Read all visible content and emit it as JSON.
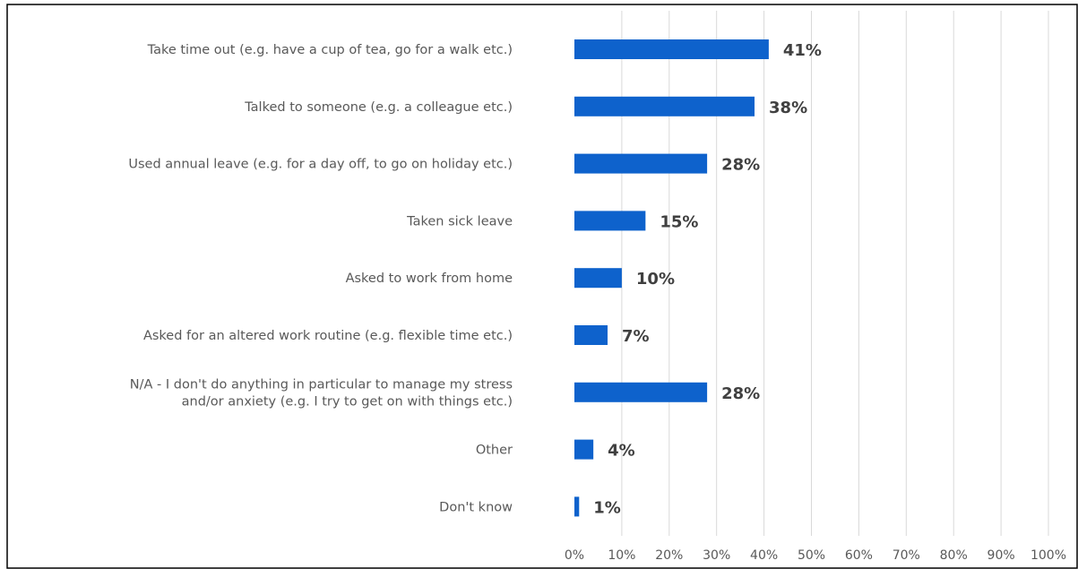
{
  "chart_data": {
    "type": "bar",
    "orientation": "horizontal",
    "categories": [
      [
        "Take time out (e.g. have a cup of tea, go for a walk etc.)"
      ],
      [
        "Talked to someone (e.g. a colleague etc.)"
      ],
      [
        "Used annual leave (e.g. for a day off, to go on holiday etc.)"
      ],
      [
        "Taken sick leave"
      ],
      [
        "Asked to work from home"
      ],
      [
        "Asked for an altered work routine (e.g. flexible time etc.)"
      ],
      [
        "N/A - I don't do anything in particular to manage my stress",
        "and/or anxiety (e.g. I try to get on with things etc.)"
      ],
      [
        "Other"
      ],
      [
        "Don't know"
      ]
    ],
    "values": [
      41,
      38,
      28,
      15,
      10,
      7,
      28,
      4,
      1
    ],
    "data_labels": [
      "41%",
      "38%",
      "28%",
      "15%",
      "10%",
      "7%",
      "28%",
      "4%",
      "1%"
    ],
    "xlim": [
      0,
      100
    ],
    "ticks": [
      0,
      10,
      20,
      30,
      40,
      50,
      60,
      70,
      80,
      90,
      100
    ],
    "tick_labels": [
      "0%",
      "10%",
      "20%",
      "30%",
      "40%",
      "50%",
      "60%",
      "70%",
      "80%",
      "90%",
      "100%"
    ],
    "grid": "vertical",
    "bar_color": "#0e62cc",
    "title": "",
    "xlabel": "",
    "ylabel": ""
  }
}
